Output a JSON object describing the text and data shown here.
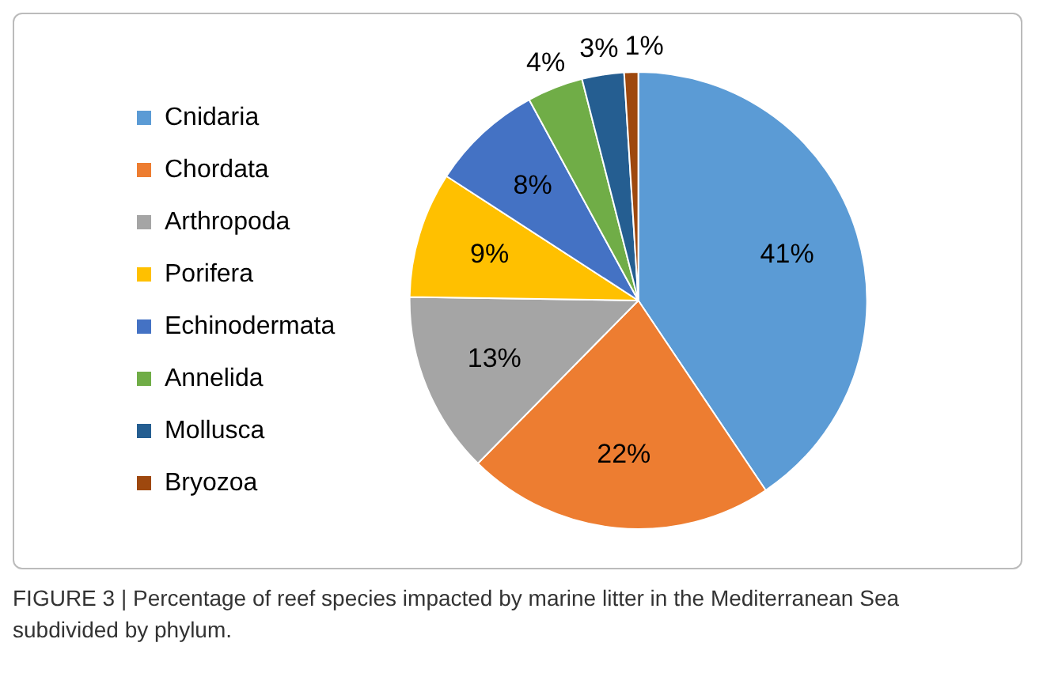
{
  "chart_data": {
    "type": "pie",
    "categories": [
      "Cnidaria",
      "Chordata",
      "Arthropoda",
      "Porifera",
      "Echinodermata",
      "Annelida",
      "Mollusca",
      "Bryozoa"
    ],
    "values": [
      41,
      22,
      13,
      9,
      8,
      4,
      3,
      1
    ],
    "value_labels": [
      "41%",
      "22%",
      "13%",
      "9%",
      "8%",
      "4%",
      "3%",
      "1%"
    ],
    "colors": [
      "#5b9bd5",
      "#ed7d31",
      "#a5a5a5",
      "#ffc000",
      "#4472c4",
      "#70ad47",
      "#255e91",
      "#9e480e"
    ],
    "legend": "left",
    "annotations": [
      "FIGURE 3 | Percentage of reef species impacted by marine litter in the Mediterranean Sea subdivided by phylum."
    ]
  }
}
